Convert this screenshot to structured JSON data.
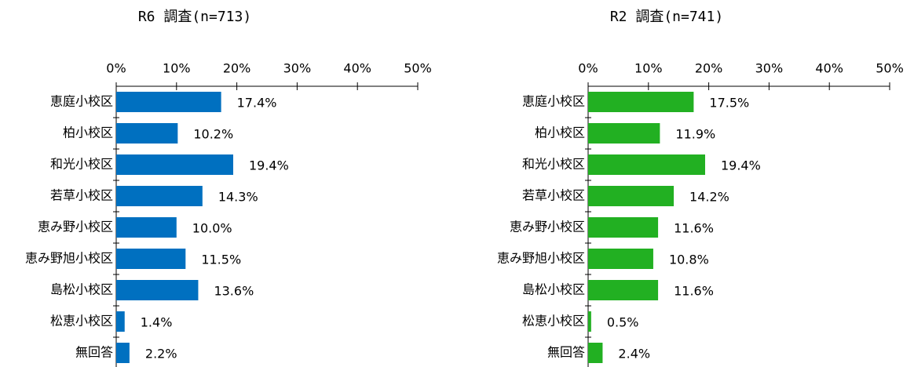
{
  "chart_data": [
    {
      "type": "hbar",
      "title": "R6 調査(n=713)",
      "categories": [
        "恵庭小校区",
        "柏小校区",
        "和光小校区",
        "若草小校区",
        "恵み野小校区",
        "恵み野旭小校区",
        "島松小校区",
        "松恵小校区",
        "無回答"
      ],
      "values": [
        17.4,
        10.2,
        19.4,
        14.3,
        10.0,
        11.5,
        13.6,
        1.4,
        2.2
      ],
      "value_labels": [
        "17.4%",
        "10.2%",
        "19.4%",
        "14.3%",
        "10.0%",
        "11.5%",
        "13.6%",
        "1.4%",
        "2.2%"
      ],
      "color": "#0070c0",
      "xlim": [
        0,
        50
      ],
      "xticks": [
        {
          "value": 0,
          "label": "0%"
        },
        {
          "value": 10,
          "label": "10%"
        },
        {
          "value": 20,
          "label": "20%"
        },
        {
          "value": 30,
          "label": "30%"
        },
        {
          "value": 40,
          "label": "40%"
        },
        {
          "value": 50,
          "label": "50%"
        }
      ]
    },
    {
      "type": "hbar",
      "title": "R2 調査(n=741)",
      "categories": [
        "恵庭小校区",
        "柏小校区",
        "和光小校区",
        "若草小校区",
        "恵み野小校区",
        "恵み野旭小校区",
        "島松小校区",
        "松恵小校区",
        "無回答"
      ],
      "values": [
        17.5,
        11.9,
        19.4,
        14.2,
        11.6,
        10.8,
        11.6,
        0.5,
        2.4
      ],
      "value_labels": [
        "17.5%",
        "11.9%",
        "19.4%",
        "14.2%",
        "11.6%",
        "10.8%",
        "11.6%",
        "0.5%",
        "2.4%"
      ],
      "color": "#22b022",
      "xlim": [
        0,
        50
      ],
      "xticks": [
        {
          "value": 0,
          "label": "0%"
        },
        {
          "value": 10,
          "label": "10%"
        },
        {
          "value": 20,
          "label": "20%"
        },
        {
          "value": 30,
          "label": "30%"
        },
        {
          "value": 40,
          "label": "40%"
        },
        {
          "value": 50,
          "label": "50%"
        }
      ]
    }
  ]
}
